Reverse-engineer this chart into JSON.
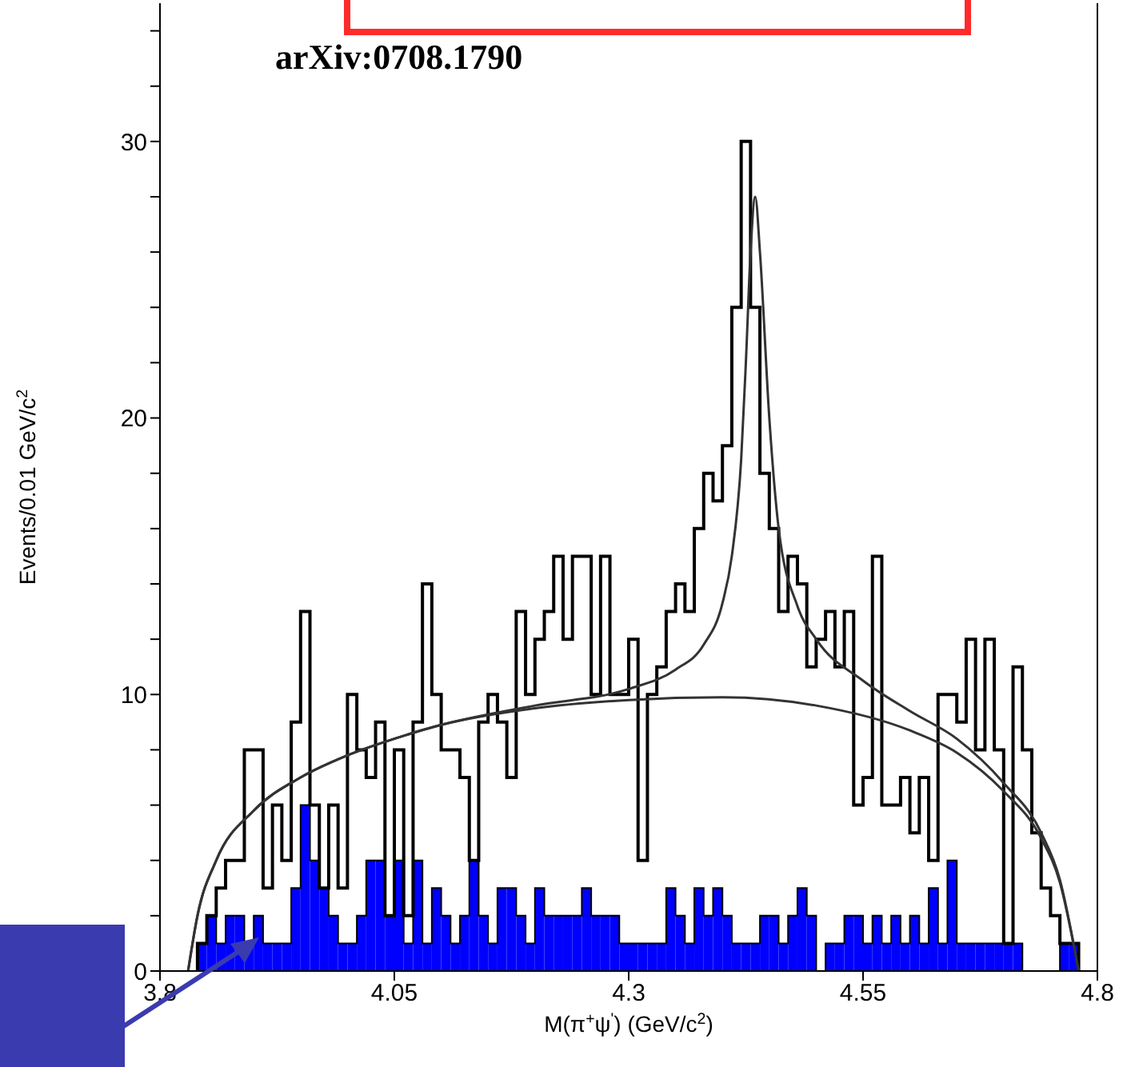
{
  "chart_data": {
    "type": "histogram",
    "annotations": [
      "arXiv:0708.1790"
    ],
    "xlabel": "M(π$^{+}$ψ$^{'}$) (GeV/c$^{2}$)",
    "ylabel": "Events/0.01 GeV/c$^{2}$",
    "bins": [
      3.84,
      3.85,
      3.86,
      3.87,
      3.88,
      3.89,
      3.9,
      3.91,
      3.92,
      3.93,
      3.94,
      3.95,
      3.96,
      3.97,
      3.98,
      3.99,
      4.0,
      4.01,
      4.02,
      4.03,
      4.04,
      4.05,
      4.06,
      4.07,
      4.08,
      4.09,
      4.1,
      4.11,
      4.12,
      4.13,
      4.14,
      4.15,
      4.16,
      4.17,
      4.18,
      4.19,
      4.2,
      4.21,
      4.22,
      4.23,
      4.24,
      4.25,
      4.26,
      4.27,
      4.28,
      4.29,
      4.3,
      4.31,
      4.32,
      4.33,
      4.34,
      4.35,
      4.36,
      4.37,
      4.38,
      4.39,
      4.4,
      4.41,
      4.42,
      4.43,
      4.44,
      4.45,
      4.46,
      4.47,
      4.48,
      4.49,
      4.5,
      4.51,
      4.52,
      4.53,
      4.54,
      4.55,
      4.56,
      4.57,
      4.58,
      4.59,
      4.6,
      4.61,
      4.62,
      4.63,
      4.64,
      4.65,
      4.66,
      4.67,
      4.68,
      4.69,
      4.7,
      4.71,
      4.72,
      4.73,
      4.74,
      4.75,
      4.76,
      4.77,
      4.78
    ],
    "series": [
      {
        "color": "#0000ff",
        "values": [
          1,
          2,
          1,
          2,
          2,
          1,
          2,
          1,
          1,
          1,
          3,
          6,
          4,
          3,
          2,
          1,
          1,
          2,
          4,
          4,
          2,
          4,
          1,
          4,
          1,
          3,
          2,
          1,
          2,
          4,
          2,
          1,
          3,
          3,
          2,
          1,
          3,
          2,
          2,
          2,
          2,
          3,
          2,
          2,
          2,
          1,
          1,
          1,
          1,
          1,
          3,
          2,
          1,
          3,
          2,
          3,
          2,
          1,
          1,
          1,
          2,
          2,
          1,
          2,
          3,
          2,
          0,
          1,
          1,
          2,
          2,
          1,
          2,
          1,
          2,
          1,
          2,
          1,
          3,
          1,
          4,
          1,
          1,
          1,
          1,
          1,
          1,
          1,
          0,
          0,
          0,
          0,
          1,
          1
        ]
      },
      {
        "color": "#000000",
        "values": [
          1,
          2,
          3,
          4,
          4,
          8,
          8,
          3,
          6,
          4,
          9,
          13,
          6,
          3,
          6,
          3,
          10,
          8,
          7,
          9,
          2,
          8,
          2,
          9,
          14,
          10,
          8,
          8,
          7,
          4,
          9,
          10,
          9,
          7,
          13,
          10,
          12,
          13,
          15,
          12,
          15,
          15,
          10,
          15,
          10,
          10,
          12,
          4,
          10,
          11,
          13,
          14,
          13,
          16,
          18,
          17,
          19,
          24,
          30,
          24,
          18,
          16,
          13,
          15,
          14,
          11,
          12,
          13,
          11,
          13,
          6,
          7,
          15,
          6,
          6,
          7,
          5,
          7,
          4,
          10,
          10,
          9,
          12,
          8,
          12,
          8,
          1,
          11,
          8,
          5,
          3,
          2,
          1,
          1
        ]
      },
      {
        "type": "line",
        "color": "#333333",
        "x": [
          3.83,
          3.84,
          3.86,
          3.9,
          3.95,
          4.0,
          4.05,
          4.1,
          4.2,
          4.3,
          4.4,
          4.5,
          4.6,
          4.65,
          4.7,
          4.74,
          4.76,
          4.78
        ],
        "values": [
          0,
          2,
          4,
          5.8,
          7,
          7.8,
          8.4,
          8.9,
          9.5,
          9.8,
          9.9,
          9.6,
          8.7,
          7.9,
          6.5,
          4.8,
          3.2,
          0
        ]
      },
      {
        "type": "line",
        "color": "#333333",
        "x": [
          3.83,
          3.84,
          3.86,
          3.9,
          3.95,
          4.0,
          4.05,
          4.1,
          4.2,
          4.3,
          4.35,
          4.38,
          4.4,
          4.41,
          4.42,
          4.425,
          4.43,
          4.435,
          4.44,
          4.45,
          4.46,
          4.48,
          4.5,
          4.55,
          4.6,
          4.65,
          4.7,
          4.74,
          4.76,
          4.78
        ],
        "values": [
          0,
          2,
          4,
          5.8,
          7,
          7.8,
          8.4,
          8.9,
          9.6,
          10.2,
          10.9,
          11.8,
          13.3,
          15,
          18.5,
          22,
          26,
          28,
          26,
          20,
          16,
          13.2,
          12,
          10.5,
          9.4,
          8.4,
          6.8,
          5,
          3.3,
          0
        ]
      }
    ],
    "xlim": [
      3.8,
      4.8
    ],
    "xticks": [
      3.8,
      4.05,
      4.3,
      4.55,
      4.8
    ],
    "ylim": [
      0,
      35
    ],
    "yticks": [
      0,
      {
        "value": 2,
        "label": null
      },
      {
        "value": 4,
        "label": null
      },
      {
        "value": 6,
        "label": null
      },
      {
        "value": 8,
        "label": null
      },
      10,
      {
        "value": 12,
        "label": null
      },
      {
        "value": 14,
        "label": null
      },
      {
        "value": 16,
        "label": null
      },
      {
        "value": 18,
        "label": null
      },
      20,
      {
        "value": 22,
        "label": null
      },
      {
        "value": 24,
        "label": null
      },
      {
        "value": 26,
        "label": null
      },
      {
        "value": 28,
        "label": null
      },
      30,
      {
        "value": 32,
        "label": null
      },
      {
        "value": 34,
        "label": null
      }
    ]
  }
}
